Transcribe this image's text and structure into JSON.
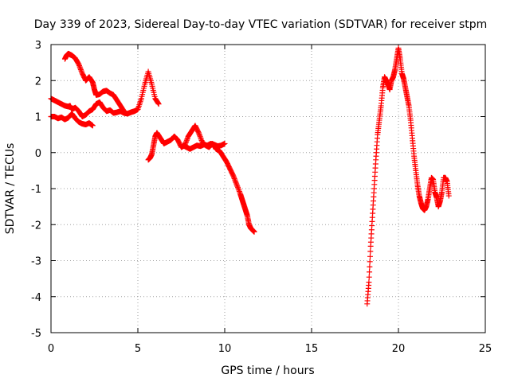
{
  "chart_data": {
    "type": "scatter",
    "title": "Day 339 of 2023, Sidereal Day-to-day VTEC variation (SDTVAR) for receiver stpm",
    "xlabel": "GPS time / hours",
    "ylabel": "SDTVAR / TECUs",
    "xlim": [
      0,
      25
    ],
    "ylim": [
      -5,
      3
    ],
    "xticks": [
      0,
      5,
      10,
      15,
      20,
      25
    ],
    "yticks": [
      -5,
      -4,
      -3,
      -2,
      -1,
      0,
      1,
      2,
      3
    ],
    "grid": true,
    "marker": "+",
    "color": "#ff0000",
    "series": [
      {
        "x": [
          0.0,
          0.2,
          0.4,
          0.6,
          0.8,
          1.0,
          1.2,
          1.4,
          1.6,
          1.8,
          2.0,
          2.2,
          2.4
        ],
        "y": [
          1.0,
          1.0,
          0.95,
          0.98,
          0.92,
          0.97,
          1.08,
          0.95,
          0.85,
          0.8,
          0.78,
          0.82,
          0.75
        ]
      },
      {
        "x": [
          0.0,
          0.2,
          0.4,
          0.6,
          0.8,
          1.0,
          1.1,
          1.2,
          1.4,
          1.6,
          1.8,
          2.0,
          2.2,
          2.4,
          2.6,
          2.8,
          3.0,
          3.2,
          3.4,
          3.6,
          3.8,
          4.0,
          4.2,
          4.4,
          4.6,
          4.8,
          5.0,
          5.2,
          5.4,
          5.6,
          5.8,
          6.0,
          6.2
        ],
        "y": [
          1.5,
          1.45,
          1.4,
          1.35,
          1.3,
          1.28,
          1.3,
          1.2,
          1.25,
          1.15,
          1.0,
          1.05,
          1.15,
          1.2,
          1.35,
          1.4,
          1.25,
          1.15,
          1.18,
          1.1,
          1.12,
          1.15,
          1.1,
          1.08,
          1.12,
          1.15,
          1.2,
          1.5,
          1.9,
          2.25,
          1.9,
          1.5,
          1.35
        ]
      },
      {
        "x": [
          0.8,
          0.9,
          1.0,
          1.1,
          1.2,
          1.4,
          1.6,
          1.8,
          2.0,
          2.2,
          2.4,
          2.5,
          2.6,
          2.8,
          3.0,
          3.2,
          3.4,
          3.6,
          3.8,
          4.0,
          4.2
        ],
        "y": [
          2.6,
          2.7,
          2.75,
          2.72,
          2.7,
          2.62,
          2.45,
          2.2,
          2.0,
          2.1,
          1.95,
          1.75,
          1.6,
          1.62,
          1.7,
          1.72,
          1.65,
          1.6,
          1.45,
          1.3,
          1.15
        ]
      },
      {
        "x": [
          5.6,
          5.7,
          5.8,
          5.9,
          6.0,
          6.1,
          6.3,
          6.5,
          6.7,
          6.9,
          7.1,
          7.3,
          7.5,
          7.7,
          7.9,
          8.1,
          8.3,
          8.5,
          8.7,
          8.9,
          9.1,
          9.3,
          9.5,
          9.7,
          9.9,
          10.1,
          10.3,
          10.5,
          10.7,
          10.9,
          11.0,
          11.1,
          11.2,
          11.3,
          11.4,
          11.5,
          11.6,
          11.7
        ],
        "y": [
          -0.2,
          -0.15,
          -0.05,
          0.2,
          0.45,
          0.55,
          0.4,
          0.25,
          0.3,
          0.35,
          0.45,
          0.35,
          0.15,
          0.2,
          0.45,
          0.6,
          0.75,
          0.55,
          0.3,
          0.2,
          0.15,
          0.25,
          0.1,
          0.05,
          -0.1,
          -0.25,
          -0.45,
          -0.65,
          -0.9,
          -1.15,
          -1.3,
          -1.45,
          -1.6,
          -1.75,
          -2.0,
          -2.1,
          -2.15,
          -2.2
        ]
      },
      {
        "x": [
          7.6,
          7.8,
          8.0,
          8.2,
          8.4,
          8.6,
          8.8,
          9.0,
          9.2,
          9.4,
          9.6,
          9.8,
          10.0
        ],
        "y": [
          0.2,
          0.15,
          0.1,
          0.15,
          0.2,
          0.18,
          0.22,
          0.2,
          0.25,
          0.22,
          0.18,
          0.2,
          0.25
        ]
      },
      {
        "x": [
          18.2,
          18.3,
          18.4,
          18.5,
          18.6,
          18.7,
          18.8,
          18.9,
          19.0,
          19.1,
          19.2,
          19.3,
          19.4,
          19.5,
          19.6,
          19.7,
          19.8,
          19.9,
          20.0,
          20.1,
          20.2,
          20.3,
          20.4,
          20.5,
          20.6,
          20.7,
          20.8,
          20.9,
          21.0,
          21.1,
          21.2,
          21.3,
          21.4,
          21.5,
          21.6,
          21.7,
          21.8,
          21.9,
          22.0,
          22.1,
          22.2,
          22.3,
          22.4,
          22.5,
          22.6,
          22.7,
          22.8,
          22.9
        ],
        "y": [
          -4.2,
          -3.6,
          -2.6,
          -1.8,
          -1.0,
          -0.2,
          0.5,
          0.9,
          1.3,
          1.8,
          2.1,
          2.0,
          1.9,
          1.75,
          2.0,
          2.1,
          2.3,
          2.6,
          2.9,
          2.6,
          2.2,
          2.05,
          1.8,
          1.55,
          1.3,
          0.9,
          0.4,
          -0.1,
          -0.5,
          -0.9,
          -1.2,
          -1.4,
          -1.55,
          -1.6,
          -1.5,
          -1.3,
          -1.0,
          -0.7,
          -0.75,
          -1.1,
          -1.25,
          -1.5,
          -1.35,
          -1.1,
          -0.7,
          -0.7,
          -0.8,
          -1.2
        ]
      }
    ]
  }
}
